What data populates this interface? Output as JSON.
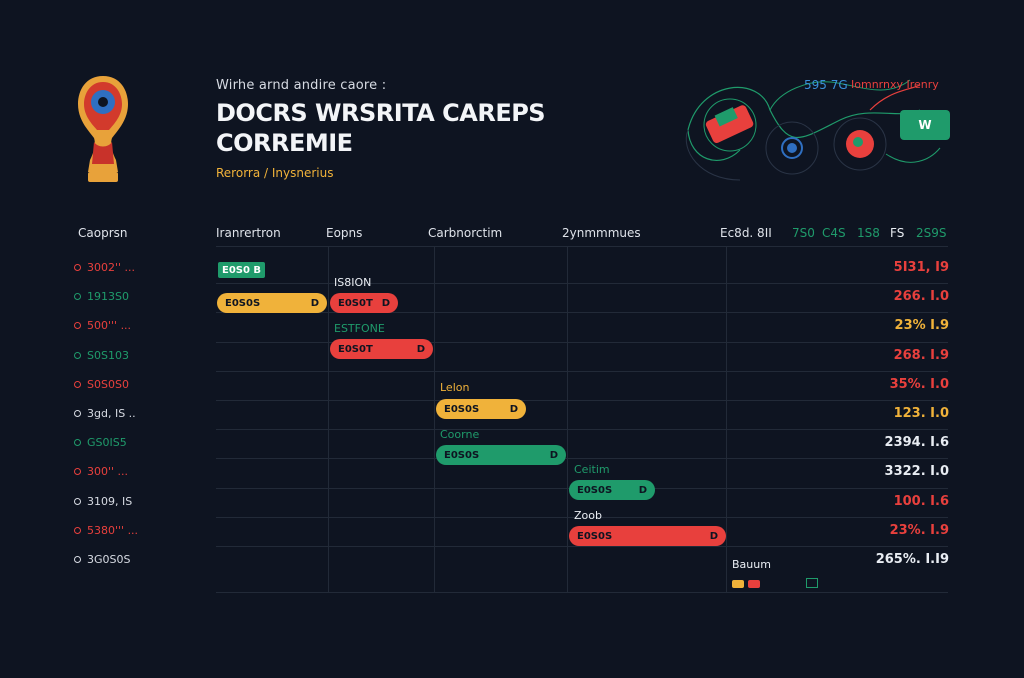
{
  "header": {
    "subtitle": "Wirhe arnd andire caore :",
    "title_line1": "DOCRS WRSRITA CAREPS",
    "title_line2": "CORREMIE",
    "caption": "Rerorra / Inysnerius"
  },
  "top_right": {
    "number": "595 7G",
    "warning": "Iomnrnxy Irenry",
    "badge": "W"
  },
  "table": {
    "row_header": "Caoprsn",
    "columns": [
      "Iranrertron",
      "Eopns",
      "Carbnorctim",
      "2ynmmmues"
    ],
    "right_headers": [
      "Ec8d. 8II",
      "7S0",
      "C4S",
      "1S8",
      "FS",
      "2S9S"
    ],
    "rows": [
      {
        "label": "3002'' ...",
        "color": "#e8403d"
      },
      {
        "label": "1913S0",
        "color": "#1f9b6b"
      },
      {
        "label": "500''' ...",
        "color": "#e8403d"
      },
      {
        "label": "S0S103",
        "color": "#1f9b6b"
      },
      {
        "label": "S0S0S0",
        "color": "#e8403d"
      },
      {
        "label": "3gd, IS ..",
        "color": "#d7dbe3"
      },
      {
        "label": "GS0IS5",
        "color": "#1f9b6b"
      },
      {
        "label": "300'' ...",
        "color": "#e8403d"
      },
      {
        "label": "3109, IS",
        "color": "#d7dbe3"
      },
      {
        "label": "5380''' ...",
        "color": "#e8403d"
      },
      {
        "label": "3G0S0S",
        "color": "#d7dbe3"
      }
    ],
    "values": [
      {
        "text": "5I31, I9",
        "color": "#e8403d"
      },
      {
        "text": "266. I.0",
        "color": "#e8403d"
      },
      {
        "text": "23% I.9",
        "color": "#f0b23a"
      },
      {
        "text": "268. I.9",
        "color": "#e8403d"
      },
      {
        "text": "35%. I.0",
        "color": "#e8403d"
      },
      {
        "text": "123. I.0",
        "color": "#f0b23a"
      },
      {
        "text": "2394. I.6",
        "color": "#e9edf3"
      },
      {
        "text": "3322. I.0",
        "color": "#e9edf3"
      },
      {
        "text": "100. I.6",
        "color": "#e8403d"
      },
      {
        "text": "23%. I.9",
        "color": "#e8403d"
      },
      {
        "text": "265%. I.I9",
        "color": "#e9edf3"
      }
    ]
  },
  "gantt": {
    "chips": [
      {
        "text": "E0S0 B"
      }
    ],
    "labels": [
      {
        "text": "IS8ION",
        "color": "#e9edf3"
      },
      {
        "text": "ESTFONE",
        "color": "#1f9b6b"
      },
      {
        "text": "Lelon",
        "color": "#f0b23a"
      },
      {
        "text": "Coorne",
        "color": "#1f9b6b"
      },
      {
        "text": "Ceitim",
        "color": "#1f9b6b"
      },
      {
        "text": "Zoob",
        "color": "#e9edf3"
      },
      {
        "text": "Bauum",
        "color": "#e9edf3"
      }
    ],
    "bars": [
      {
        "text": "E0S0S",
        "end": "D",
        "color": "#f0b23a"
      },
      {
        "text": "E0S0T",
        "end": "D",
        "color": "#e8403d"
      },
      {
        "text": "E0S0T",
        "end": "D",
        "color": "#e8403d"
      },
      {
        "text": "E0S0S",
        "end": "D",
        "color": "#f0b23a"
      },
      {
        "text": "E0S0S",
        "end": "D",
        "color": "#1f9b6b"
      },
      {
        "text": "E0S0S",
        "end": "D",
        "color": "#1f9b6b"
      },
      {
        "text": "E0S0S",
        "end": "D",
        "color": "#e8403d"
      }
    ]
  },
  "colors": {
    "red": "#e8403d",
    "green": "#1f9b6b",
    "yellow": "#f0b23a",
    "background": "#0e1421"
  }
}
